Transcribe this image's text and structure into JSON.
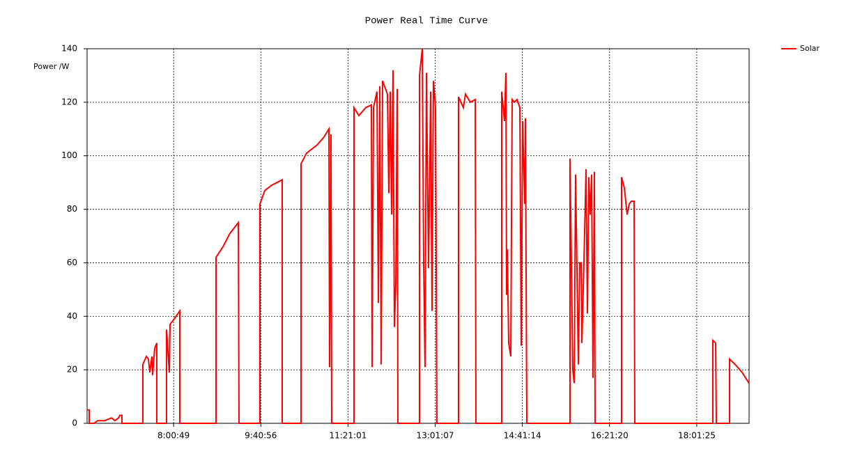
{
  "chart_data": {
    "type": "line",
    "title": "Power Real Time Curve",
    "y_label": "Power /W",
    "xlim": [
      "6:21:30",
      "19:01:30"
    ],
    "xticks": [
      "8:00:49",
      "9:40:56",
      "11:21:01",
      "13:01:07",
      "14:41:14",
      "16:21:20",
      "18:01:25"
    ],
    "ylim": [
      0,
      140
    ],
    "yticks": [
      0,
      20,
      40,
      60,
      80,
      100,
      120,
      140
    ],
    "grid": true,
    "legend": "top-right",
    "x": [
      "6:21:30",
      "6:23:54",
      "6:23:54",
      "6:29:30",
      "6:33:30",
      "6:41:30",
      "6:49:30",
      "6:53:30",
      "6:57:30",
      "6:59:06",
      "7:01:30",
      "7:01:30",
      "7:25:30",
      "7:25:30",
      "7:29:30",
      "7:31:54",
      "7:33:30",
      "7:35:54",
      "7:36:42",
      "7:39:06",
      "7:41:30",
      "7:41:30",
      "7:52:42",
      "7:52:42",
      "7:55:54",
      "7:56:42",
      "8:01:30",
      "8:07:54",
      "8:07:54",
      "8:49:30",
      "8:49:30",
      "8:57:30",
      "9:05:30",
      "9:15:06",
      "9:15:54",
      "9:39:54",
      "9:39:54",
      "9:45:30",
      "9:53:30",
      "10:05:30",
      "10:05:30",
      "10:27:06",
      "10:27:06",
      "10:33:30",
      "10:45:30",
      "10:53:30",
      "10:59:06",
      "10:59:54",
      "11:01:30",
      "11:02:18",
      "11:27:54",
      "11:27:54",
      "11:33:30",
      "11:41:30",
      "11:47:54",
      "11:48:42",
      "11:50:18",
      "11:54:18",
      "11:55:54",
      "11:57:30",
      "11:59:06",
      "12:00:42",
      "12:06:18",
      "12:07:54",
      "12:09:30",
      "12:11:06",
      "12:12:42",
      "12:14:18",
      "12:15:54",
      "12:17:30",
      "12:18:18",
      "12:43:06",
      "12:43:06",
      "12:46:18",
      "12:47:54",
      "12:49:30",
      "12:51:06",
      "12:53:30",
      "12:55:54",
      "12:57:30",
      "12:59:06",
      "13:01:30",
      "13:03:06",
      "13:27:54",
      "13:27:54",
      "13:33:30",
      "13:35:54",
      "13:41:30",
      "13:47:06",
      "13:47:54",
      "14:17:30",
      "14:17:30",
      "14:20:42",
      "14:22:18",
      "14:23:06",
      "14:23:54",
      "14:25:30",
      "14:27:54",
      "14:29:30",
      "14:31:54",
      "14:35:06",
      "14:38:18",
      "14:39:54",
      "14:41:30",
      "14:43:54",
      "14:44:42",
      "14:46:18",
      "15:35:54",
      "15:35:54",
      "15:39:06",
      "15:40:42",
      "15:42:18",
      "15:45:30",
      "15:47:06",
      "15:48:42",
      "15:49:30",
      "15:51:54",
      "15:54:18",
      "15:55:54",
      "15:57:30",
      "15:59:06",
      "16:00:42",
      "16:02:18",
      "16:03:54",
      "16:04:42",
      "16:35:06",
      "16:35:06",
      "16:38:18",
      "16:41:30",
      "16:43:54",
      "16:46:18",
      "16:49:30",
      "16:50:18",
      "18:19:54",
      "18:19:54",
      "18:23:06",
      "18:23:54",
      "18:39:06",
      "18:39:06",
      "18:45:30",
      "18:53:30",
      "19:01:30"
    ],
    "series": [
      {
        "name": "Solar",
        "color": "#ff0000",
        "values": [
          5,
          5,
          0,
          0,
          1,
          1,
          2,
          1,
          2,
          3,
          3,
          0,
          0,
          22,
          25,
          24,
          19,
          25,
          18,
          28,
          30,
          0,
          0,
          35,
          19,
          37,
          39,
          42,
          0,
          0,
          62,
          66,
          71,
          75,
          0,
          0,
          82,
          87,
          89,
          91,
          0,
          0,
          97,
          101,
          104,
          107,
          110,
          21,
          108,
          0,
          0,
          118,
          115,
          118,
          119,
          21,
          118,
          124,
          45,
          126,
          22,
          128,
          123,
          86,
          124,
          78,
          132,
          36,
          52,
          125,
          0,
          0,
          130,
          140,
          60,
          21,
          131,
          58,
          124,
          42,
          128,
          118,
          0,
          0,
          122,
          118,
          123,
          120,
          121,
          0,
          0,
          124,
          113,
          131,
          48,
          65,
          30,
          25,
          121,
          120,
          121,
          118,
          29,
          113,
          82,
          114,
          0,
          0,
          99,
          20,
          15,
          93,
          22,
          60,
          60,
          30,
          60,
          95,
          41,
          92,
          78,
          93,
          17,
          94,
          0,
          0,
          92,
          88,
          78,
          82,
          83,
          83,
          0,
          0,
          31,
          30,
          0,
          0,
          24,
          22,
          19,
          15
        ]
      }
    ]
  }
}
